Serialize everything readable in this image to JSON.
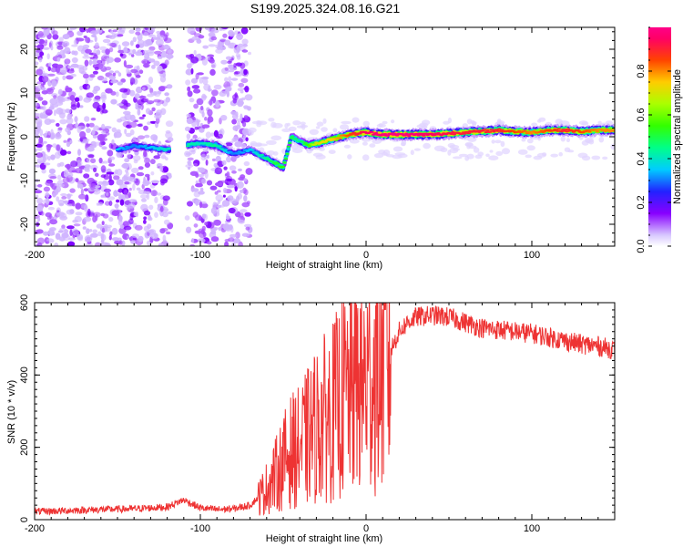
{
  "figure": {
    "title": "S199.2025.324.08.16.G21"
  },
  "chart_data": [
    {
      "type": "heatmap",
      "title": "S199.2025.324.08.16.G21",
      "xlabel": "Height of straight line (km)",
      "ylabel": "Frequency (Hz)",
      "xlim": [
        -200,
        150
      ],
      "ylim": [
        -25,
        25
      ],
      "x_ticks": [
        -200,
        -100,
        0,
        100
      ],
      "y_ticks": [
        -20,
        -10,
        0,
        10,
        20
      ],
      "colorbar": {
        "label": "Normalized spectral amplitude",
        "range": [
          0,
          1
        ],
        "ticks": [
          0.0,
          0.2,
          0.4,
          0.6,
          0.8
        ]
      },
      "ridge": {
        "description_x_km": [
          -150,
          -140,
          -130,
          -120,
          -110,
          -100,
          -90,
          -80,
          -70,
          -60,
          -55,
          -50,
          -45,
          -40,
          -35,
          -30,
          -20,
          -10,
          0,
          10,
          20,
          40,
          60,
          80,
          90,
          100,
          110,
          120,
          130,
          140,
          150
        ],
        "frequency_hz": [
          -3,
          -2,
          -2.5,
          -3,
          -2,
          -1.5,
          -2,
          -4,
          -3,
          -5,
          -6,
          -7,
          0,
          -1,
          -2,
          -1.5,
          -0.5,
          0.5,
          1,
          0.5,
          0.5,
          0.5,
          1,
          1.5,
          1.2,
          1,
          1.5,
          1.5,
          1.2,
          1.5,
          1.5
        ],
        "amplitude": [
          0.35,
          0.3,
          0.35,
          0.4,
          0.45,
          0.4,
          0.45,
          0.3,
          0.35,
          0.45,
          0.5,
          0.55,
          0.5,
          0.45,
          0.55,
          0.7,
          0.75,
          0.85,
          0.95,
          0.98,
          0.98,
          0.95,
          0.9,
          0.9,
          0.85,
          0.8,
          0.85,
          0.9,
          0.85,
          0.8,
          0.8
        ]
      },
      "noise_region_km": [
        -200,
        -70
      ],
      "gap_region_km": [
        -118,
        -108
      ]
    },
    {
      "type": "line",
      "xlabel": "Height of straight line (km)",
      "ylabel": "SNR (10 * v/v)",
      "xlim": [
        -200,
        150
      ],
      "ylim": [
        0,
        600
      ],
      "x_ticks": [
        -200,
        -100,
        0,
        100
      ],
      "y_ticks": [
        0,
        200,
        400,
        600
      ],
      "color": "#ee3333",
      "series": [
        {
          "name": "SNR",
          "x": [
            -200,
            -180,
            -160,
            -140,
            -120,
            -110,
            -100,
            -90,
            -80,
            -70,
            -62,
            -55,
            -50,
            -45,
            -40,
            -35,
            -30,
            -25,
            -20,
            -15,
            -10,
            -5,
            0,
            5,
            10,
            15,
            20,
            25,
            30,
            40,
            50,
            60,
            70,
            80,
            90,
            100,
            110,
            120,
            130,
            140,
            150
          ],
          "y": [
            22,
            25,
            28,
            30,
            35,
            55,
            32,
            28,
            30,
            40,
            75,
            120,
            160,
            190,
            200,
            230,
            260,
            280,
            300,
            330,
            360,
            380,
            380,
            400,
            430,
            470,
            520,
            545,
            560,
            565,
            560,
            545,
            530,
            525,
            520,
            515,
            505,
            495,
            485,
            480,
            470
          ]
        }
      ]
    }
  ],
  "colors": {
    "line": "#ee3333",
    "axis": "#000000",
    "background": "#ffffff"
  }
}
